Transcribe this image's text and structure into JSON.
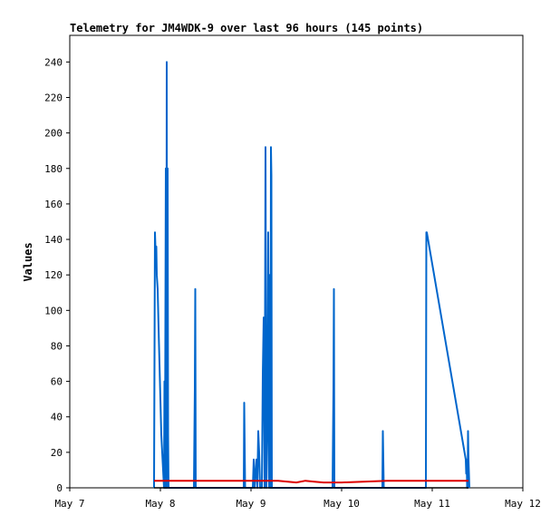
{
  "chart_data": {
    "type": "line",
    "title": "Telemetry for JM4WDK-9 over last 96 hours (145 points)",
    "xlabel": "",
    "ylabel": "Values",
    "xlim": [
      "May 7",
      "May 12"
    ],
    "ylim": [
      0,
      255
    ],
    "x_ticks": [
      "May 7",
      "May 8",
      "May 9",
      "May 10",
      "May 11",
      "May 12"
    ],
    "y_ticks": [
      0,
      20,
      40,
      60,
      80,
      100,
      120,
      140,
      160,
      180,
      200,
      220,
      240
    ],
    "grid": false,
    "legend": "none",
    "series": [
      {
        "color": "#0066cc",
        "x": [
          0.93,
          0.94,
          0.95,
          0.955,
          0.96,
          0.97,
          0.98,
          0.99,
          1.0,
          1.01,
          1.02,
          1.03,
          1.04,
          1.045,
          1.05,
          1.06,
          1.065,
          1.07,
          1.075,
          1.08,
          1.085,
          1.09,
          1.1,
          1.37,
          1.38,
          1.385,
          1.39,
          1.92,
          1.925,
          1.93,
          1.935,
          1.94,
          2.02,
          2.03,
          2.04,
          2.05,
          2.06,
          2.07,
          2.08,
          2.09,
          2.1,
          2.11,
          2.12,
          2.13,
          2.14,
          2.15,
          2.16,
          2.17,
          2.18,
          2.19,
          2.2,
          2.205,
          2.21,
          2.215,
          2.22,
          2.225,
          2.23,
          2.235,
          2.24,
          2.245,
          2.25,
          2.255,
          2.26,
          2.265,
          2.27,
          2.275,
          2.28,
          2.285,
          2.29,
          2.3,
          2.9,
          2.91,
          2.915,
          2.92,
          3.45,
          3.455,
          3.46,
          3.465,
          3.93,
          3.935,
          3.94,
          4.37,
          4.375,
          4.38,
          4.385,
          4.39,
          4.395,
          4.4,
          4.41
        ],
        "values": [
          0,
          144,
          128,
          136,
          120,
          112,
          90,
          70,
          50,
          30,
          20,
          10,
          0,
          60,
          0,
          180,
          0,
          240,
          0,
          180,
          30,
          0,
          0,
          0,
          56,
          112,
          0,
          0,
          48,
          24,
          0,
          0,
          0,
          16,
          0,
          8,
          16,
          0,
          32,
          20,
          0,
          0,
          0,
          64,
          96,
          0,
          192,
          0,
          32,
          144,
          0,
          120,
          64,
          0,
          192,
          176,
          0,
          0,
          0,
          0,
          0,
          0,
          0,
          0,
          0,
          0,
          0,
          0,
          0,
          0,
          0,
          56,
          112,
          0,
          0,
          32,
          16,
          0,
          0,
          144,
          144,
          16,
          8,
          16,
          0,
          0,
          32,
          16,
          0
        ]
      },
      {
        "color": "#dd0000",
        "x": [
          0.93,
          1.5,
          2.0,
          2.3,
          2.5,
          2.6,
          2.7,
          2.8,
          2.9,
          3.0,
          3.5,
          4.0,
          4.4
        ],
        "values": [
          4,
          4,
          4,
          4,
          3,
          4,
          3.5,
          3,
          3,
          3,
          4,
          4,
          4
        ]
      },
      {
        "color": "#000000",
        "x": [
          0.93,
          4.4
        ],
        "values": [
          0,
          0
        ]
      }
    ]
  }
}
